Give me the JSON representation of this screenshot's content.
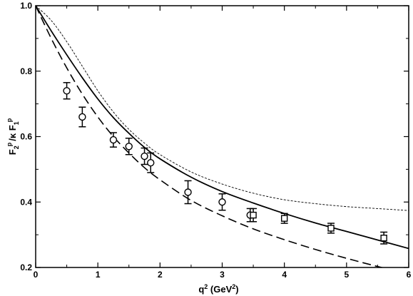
{
  "chart_data": {
    "type": "line",
    "title": "",
    "xlabel": "q",
    "xlabel_sup": "2",
    "xlabel_unit_open": " (GeV",
    "xlabel_unit_sup": "2",
    "xlabel_unit_close": ")",
    "ylabel_parts": {
      "F": "F",
      "sub2": "2",
      "supP": "p",
      "slash_kappa": "/κ F",
      "sub1": "1",
      "supP2": "p"
    },
    "xlim": [
      0,
      6
    ],
    "ylim": [
      0.2,
      1.0
    ],
    "x_ticks": [
      0,
      1,
      2,
      3,
      4,
      5,
      6
    ],
    "x_tick_labels": [
      "0",
      "1",
      "2",
      "3",
      "4",
      "5",
      "6"
    ],
    "y_ticks": [
      0.2,
      0.4,
      0.6,
      0.8,
      1.0
    ],
    "y_tick_labels": [
      "0.2",
      "0.4",
      "0.6",
      "0.8",
      "1.0"
    ],
    "grid": false,
    "legend": "none",
    "series": [
      {
        "style": "solid",
        "x": [
          0,
          0.25,
          0.5,
          0.75,
          1.0,
          1.25,
          1.5,
          1.75,
          2.0,
          2.5,
          3.0,
          3.5,
          4.0,
          4.5,
          5.0,
          5.5,
          6.0
        ],
        "y": [
          1.0,
          0.923,
          0.85,
          0.78,
          0.715,
          0.658,
          0.61,
          0.567,
          0.532,
          0.476,
          0.432,
          0.397,
          0.365,
          0.336,
          0.31,
          0.284,
          0.258
        ]
      },
      {
        "style": "dashed",
        "x": [
          0,
          0.25,
          0.5,
          0.75,
          1.0,
          1.25,
          1.5,
          1.75,
          2.0,
          2.5,
          3.0,
          3.5,
          4.0,
          4.5,
          5.0,
          5.5,
          6.0
        ],
        "y": [
          1.0,
          0.9,
          0.81,
          0.73,
          0.66,
          0.6,
          0.55,
          0.505,
          0.468,
          0.405,
          0.358,
          0.318,
          0.285,
          0.255,
          0.228,
          0.203,
          0.18
        ]
      },
      {
        "style": "dotted",
        "x": [
          0,
          0.25,
          0.5,
          0.75,
          1.0,
          1.25,
          1.5,
          1.75,
          2.0,
          2.5,
          3.0,
          3.5,
          4.0,
          4.5,
          5.0,
          5.5,
          6.0
        ],
        "y": [
          1.0,
          0.955,
          0.89,
          0.815,
          0.74,
          0.675,
          0.622,
          0.58,
          0.545,
          0.492,
          0.455,
          0.427,
          0.407,
          0.395,
          0.386,
          0.38,
          0.374
        ]
      }
    ],
    "points": [
      {
        "marker": "circle",
        "x": 0.5,
        "y": 0.74,
        "err": 0.025
      },
      {
        "marker": "circle",
        "x": 0.75,
        "y": 0.66,
        "err": 0.03
      },
      {
        "marker": "circle",
        "x": 1.25,
        "y": 0.59,
        "err": 0.022
      },
      {
        "marker": "circle",
        "x": 1.5,
        "y": 0.57,
        "err": 0.025
      },
      {
        "marker": "circle",
        "x": 1.75,
        "y": 0.54,
        "err": 0.025
      },
      {
        "marker": "circle",
        "x": 1.85,
        "y": 0.52,
        "err": 0.03
      },
      {
        "marker": "circle",
        "x": 2.45,
        "y": 0.43,
        "err": 0.035
      },
      {
        "marker": "circle",
        "x": 3.0,
        "y": 0.4,
        "err": 0.025
      },
      {
        "marker": "circle",
        "x": 3.45,
        "y": 0.36,
        "err": 0.02
      },
      {
        "marker": "square",
        "x": 3.5,
        "y": 0.36,
        "err": 0.02
      },
      {
        "marker": "square",
        "x": 4.0,
        "y": 0.35,
        "err": 0.015
      },
      {
        "marker": "square",
        "x": 4.75,
        "y": 0.32,
        "err": 0.015
      },
      {
        "marker": "square",
        "x": 5.6,
        "y": 0.29,
        "err": 0.018
      }
    ]
  }
}
